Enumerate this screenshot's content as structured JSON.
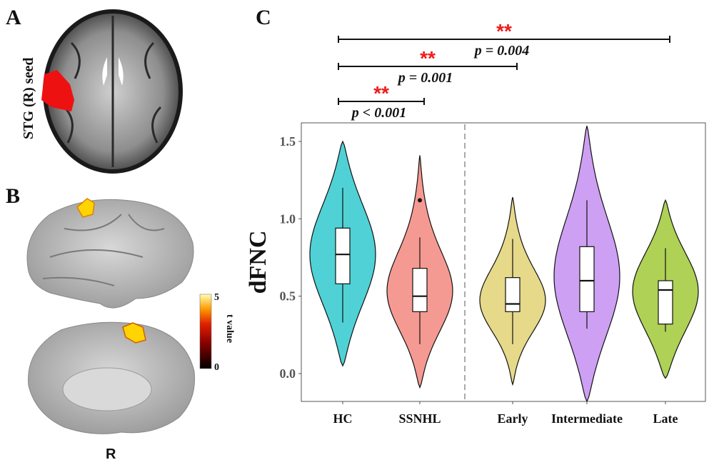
{
  "panels": {
    "a": "A",
    "b": "B",
    "c": "C"
  },
  "panel_a": {
    "seed_label": "STG (R) seed",
    "seed_color": "#ee1111"
  },
  "panel_b": {
    "colorbar_title": "t value",
    "colorbar_max": "5",
    "colorbar_min": "0",
    "hemisphere_label": "R"
  },
  "chart_data": {
    "type": "violin",
    "ylabel": "dFNC",
    "xlabel": "",
    "ylim": [
      -0.18,
      1.62
    ],
    "yticks": [
      "0.0",
      "0.5",
      "1.0",
      "1.5"
    ],
    "categories": [
      "HC",
      "SSNHL",
      "Early",
      "Intermediate",
      "Late"
    ],
    "groups": [
      {
        "name": "HC",
        "color": "#4fd1d6",
        "min": 0.33,
        "q1": 0.58,
        "median": 0.77,
        "q3": 0.94,
        "max": 1.2,
        "violin_min": 0.05,
        "violin_max": 1.5,
        "outliers": []
      },
      {
        "name": "SSNHL",
        "color": "#f59a92",
        "min": 0.19,
        "q1": 0.4,
        "median": 0.5,
        "q3": 0.68,
        "max": 0.88,
        "violin_min": -0.09,
        "violin_max": 1.41,
        "outliers": [
          1.12
        ]
      },
      {
        "name": "Early",
        "color": "#e6d98a",
        "min": 0.19,
        "q1": 0.4,
        "median": 0.45,
        "q3": 0.62,
        "max": 0.87,
        "violin_min": -0.07,
        "violin_max": 1.14,
        "outliers": []
      },
      {
        "name": "Intermediate",
        "color": "#cda0f3",
        "min": 0.29,
        "q1": 0.4,
        "median": 0.6,
        "q3": 0.82,
        "max": 1.12,
        "violin_min": -0.18,
        "violin_max": 1.6,
        "outliers": []
      },
      {
        "name": "Late",
        "color": "#aed156",
        "min": 0.27,
        "q1": 0.32,
        "median": 0.54,
        "q3": 0.6,
        "max": 0.81,
        "violin_min": -0.03,
        "violin_max": 1.12,
        "outliers": []
      }
    ],
    "divider_after": "SSNHL",
    "significance": [
      {
        "from": "HC",
        "to": "SSNHL",
        "stars": "**",
        "p": "p < 0.001"
      },
      {
        "from": "HC",
        "to": "Early",
        "stars": "**",
        "p": "p = 0.001"
      },
      {
        "from": "HC",
        "to": "Late",
        "stars": "**",
        "p": "p = 0.004"
      }
    ]
  }
}
